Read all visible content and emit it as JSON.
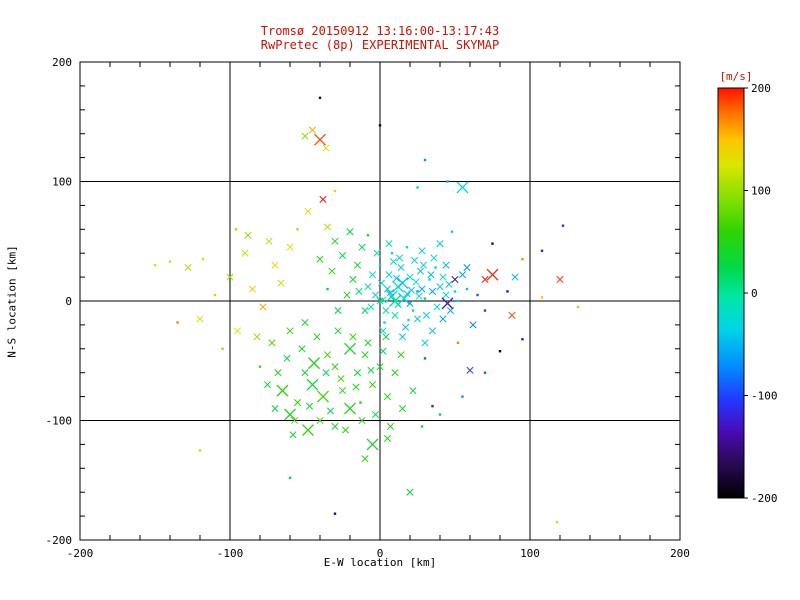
{
  "colors": {
    "background": "#ffffff",
    "title_text": "#cc1100",
    "axis_text": "#000000",
    "frame": "#000000"
  },
  "chart_data": {
    "type": "scatter",
    "title": "Tromsø 20150912 13:16:00-13:17:43",
    "subtitle": "RwPretec (8p) EXPERIMENTAL SKYMAP",
    "xlabel": "E-W location [km]",
    "ylabel": "N-S location [km]",
    "xlim": [
      -200,
      200
    ],
    "ylim": [
      -200,
      200
    ],
    "xticks": [
      -200,
      -100,
      0,
      100,
      200
    ],
    "yticks": [
      -200,
      -100,
      0,
      100,
      200
    ],
    "grid": true,
    "legend_position": "none",
    "colorbar": {
      "label": "[m/s]",
      "ticks": [
        200,
        100,
        0,
        -100,
        -200
      ],
      "min": -200,
      "max": 200
    },
    "colormap": [
      [
        -200,
        "#000000"
      ],
      [
        -165,
        "#2b0a57"
      ],
      [
        -135,
        "#4b0bb5"
      ],
      [
        -105,
        "#2337ff"
      ],
      [
        -70,
        "#008fff"
      ],
      [
        -35,
        "#00d4e6"
      ],
      [
        -5,
        "#00e6a8"
      ],
      [
        25,
        "#00d948"
      ],
      [
        60,
        "#2fd400"
      ],
      [
        95,
        "#8ce000"
      ],
      [
        125,
        "#d9e600"
      ],
      [
        150,
        "#ffc400"
      ],
      [
        175,
        "#ff7300"
      ],
      [
        200,
        "#ff1200"
      ]
    ],
    "points": [
      [
        2,
        1,
        -20,
        2
      ],
      [
        8,
        4,
        -30,
        3
      ],
      [
        12,
        -3,
        -15,
        2
      ],
      [
        5,
        10,
        -42,
        2
      ],
      [
        18,
        6,
        -25,
        2
      ],
      [
        22,
        -8,
        -12,
        1
      ],
      [
        -3,
        5,
        -35,
        2
      ],
      [
        15,
        15,
        -45,
        3
      ],
      [
        28,
        10,
        -55,
        2
      ],
      [
        10,
        -12,
        -20,
        2
      ],
      [
        6,
        22,
        -30,
        2
      ],
      [
        20,
        20,
        -15,
        2
      ],
      [
        30,
        2,
        -40,
        1
      ],
      [
        35,
        8,
        -60,
        2
      ],
      [
        14,
        28,
        -35,
        2
      ],
      [
        -6,
        -5,
        -10,
        2
      ],
      [
        25,
        -15,
        -30,
        2
      ],
      [
        3,
        -18,
        -25,
        1
      ],
      [
        9,
        33,
        -20,
        2
      ],
      [
        17,
        -22,
        -45,
        2
      ],
      [
        27,
        25,
        -50,
        2
      ],
      [
        33,
        18,
        -35,
        1
      ],
      [
        40,
        12,
        -38,
        2
      ],
      [
        44,
        5,
        -30,
        2
      ],
      [
        38,
        -5,
        -25,
        2
      ],
      [
        12,
        12,
        -8,
        3
      ],
      [
        7,
        7,
        -52,
        2
      ],
      [
        1,
        15,
        -28,
        2
      ],
      [
        -8,
        12,
        -18,
        2
      ],
      [
        16,
        2,
        -33,
        3
      ],
      [
        21,
        9,
        -47,
        2
      ],
      [
        24,
        16,
        -22,
        2
      ],
      [
        31,
        -12,
        -38,
        2
      ],
      [
        4,
        -8,
        -15,
        2
      ],
      [
        11,
        19,
        -42,
        2
      ],
      [
        19,
        -16,
        -28,
        1
      ],
      [
        26,
        4,
        -12,
        2
      ],
      [
        34,
        22,
        -48,
        2
      ],
      [
        29,
        30,
        -26,
        2
      ],
      [
        13,
        36,
        -31,
        2
      ],
      [
        8,
        40,
        -19,
        1
      ],
      [
        0,
        30,
        -37,
        1
      ],
      [
        -5,
        22,
        -23,
        2
      ],
      [
        23,
        34,
        -41,
        2
      ],
      [
        37,
        28,
        -29,
        1
      ],
      [
        42,
        20,
        -16,
        2
      ],
      [
        46,
        14,
        -44,
        2
      ],
      [
        50,
        8,
        -34,
        1
      ],
      [
        2,
        -25,
        -21,
        2
      ],
      [
        15,
        -30,
        -39,
        2
      ],
      [
        47,
        -8,
        -55,
        2
      ],
      [
        52,
        0,
        -25,
        1
      ],
      [
        44,
        30,
        -52,
        2
      ],
      [
        36,
        36,
        -20,
        2
      ],
      [
        28,
        42,
        -34,
        2
      ],
      [
        18,
        45,
        -12,
        1
      ],
      [
        6,
        48,
        -30,
        2
      ],
      [
        -2,
        40,
        -8,
        2
      ],
      [
        55,
        22,
        -60,
        2
      ],
      [
        58,
        10,
        -42,
        1
      ],
      [
        10,
        0,
        5,
        3
      ],
      [
        0,
        0,
        15,
        2
      ],
      [
        -10,
        -8,
        22,
        2
      ],
      [
        -14,
        8,
        10,
        2
      ],
      [
        20,
        -2,
        -70,
        2
      ],
      [
        25,
        8,
        -65,
        1
      ],
      [
        35,
        -25,
        -45,
        2
      ],
      [
        42,
        -15,
        -58,
        2
      ],
      [
        30,
        -35,
        -30,
        2
      ],
      [
        -18,
        18,
        35,
        2
      ],
      [
        -22,
        5,
        48,
        2
      ],
      [
        -28,
        -8,
        30,
        2
      ],
      [
        -15,
        30,
        42,
        2
      ],
      [
        -25,
        38,
        28,
        2
      ],
      [
        -32,
        25,
        55,
        2
      ],
      [
        -12,
        45,
        20,
        2
      ],
      [
        -35,
        10,
        38,
        1
      ],
      [
        -30,
        50,
        46,
        2
      ],
      [
        -20,
        58,
        24,
        2
      ],
      [
        -8,
        55,
        40,
        1
      ],
      [
        -40,
        35,
        52,
        2
      ],
      [
        -20,
        -40,
        40,
        3
      ],
      [
        -30,
        -55,
        55,
        2
      ],
      [
        -45,
        -70,
        35,
        3
      ],
      [
        -55,
        -85,
        60,
        2
      ],
      [
        -60,
        -95,
        45,
        3
      ],
      [
        -40,
        -100,
        70,
        2
      ],
      [
        -25,
        -75,
        50,
        2
      ],
      [
        -15,
        -60,
        30,
        2
      ],
      [
        -35,
        -45,
        65,
        2
      ],
      [
        -50,
        -60,
        40,
        2
      ],
      [
        -65,
        -75,
        55,
        3
      ],
      [
        -70,
        -90,
        30,
        2
      ],
      [
        -10,
        -45,
        45,
        2
      ],
      [
        -5,
        -70,
        60,
        2
      ],
      [
        -20,
        -90,
        50,
        3
      ],
      [
        -30,
        -105,
        40,
        2
      ],
      [
        -48,
        -108,
        58,
        3
      ],
      [
        -58,
        -112,
        35,
        2
      ],
      [
        0,
        -55,
        42,
        2
      ],
      [
        5,
        -80,
        52,
        2
      ],
      [
        -12,
        -100,
        62,
        2
      ],
      [
        -68,
        -60,
        48,
        2
      ],
      [
        -75,
        -70,
        38,
        2
      ],
      [
        -80,
        -55,
        68,
        1
      ],
      [
        -42,
        -30,
        58,
        2
      ],
      [
        -52,
        -40,
        44,
        2
      ],
      [
        -62,
        -48,
        30,
        2
      ],
      [
        -72,
        -35,
        72,
        2
      ],
      [
        -28,
        -25,
        36,
        2
      ],
      [
        -18,
        -30,
        64,
        2
      ],
      [
        -8,
        -35,
        46,
        2
      ],
      [
        2,
        -42,
        28,
        2
      ],
      [
        10,
        -60,
        54,
        2
      ],
      [
        -38,
        -80,
        66,
        3
      ],
      [
        -47,
        -88,
        34,
        2
      ],
      [
        -57,
        -100,
        76,
        2
      ],
      [
        -33,
        -92,
        24,
        2
      ],
      [
        -23,
        -108,
        56,
        2
      ],
      [
        -13,
        -85,
        44,
        1
      ],
      [
        -3,
        -95,
        36,
        2
      ],
      [
        7,
        -105,
        50,
        2
      ],
      [
        -60,
        -25,
        60,
        2
      ],
      [
        -50,
        -18,
        40,
        2
      ],
      [
        -36,
        -60,
        20,
        2
      ],
      [
        -26,
        -65,
        70,
        2
      ],
      [
        -16,
        -72,
        48,
        2
      ],
      [
        -6,
        -58,
        32,
        2
      ],
      [
        4,
        -30,
        26,
        2
      ],
      [
        14,
        -45,
        58,
        2
      ],
      [
        -44,
        -52,
        50,
        3
      ],
      [
        -150,
        30,
        120,
        1
      ],
      [
        -140,
        33,
        140,
        1
      ],
      [
        -128,
        28,
        110,
        2
      ],
      [
        -120,
        -15,
        130,
        2
      ],
      [
        -110,
        5,
        150,
        1
      ],
      [
        -100,
        20,
        100,
        2
      ],
      [
        -95,
        -25,
        125,
        2
      ],
      [
        -90,
        40,
        115,
        2
      ],
      [
        -85,
        10,
        145,
        2
      ],
      [
        -78,
        -5,
        160,
        2
      ],
      [
        -105,
        -40,
        105,
        1
      ],
      [
        -88,
        55,
        95,
        2
      ],
      [
        -70,
        30,
        135,
        2
      ],
      [
        -66,
        15,
        118,
        2
      ],
      [
        -60,
        45,
        128,
        2
      ],
      [
        -55,
        60,
        108,
        1
      ],
      [
        -82,
        -30,
        98,
        2
      ],
      [
        -74,
        50,
        112,
        2
      ],
      [
        -118,
        35,
        122,
        1
      ],
      [
        -96,
        60,
        102,
        1
      ],
      [
        -35,
        62,
        110,
        2
      ],
      [
        -48,
        75,
        130,
        2
      ],
      [
        -40,
        135,
        185,
        3
      ],
      [
        -45,
        143,
        160,
        2
      ],
      [
        -36,
        128,
        120,
        2
      ],
      [
        -50,
        138,
        95,
        2
      ],
      [
        -38,
        85,
        200,
        2
      ],
      [
        -30,
        92,
        140,
        1
      ],
      [
        75,
        22,
        195,
        3
      ],
      [
        70,
        18,
        200,
        2
      ],
      [
        120,
        18,
        190,
        2
      ],
      [
        88,
        -12,
        185,
        2
      ],
      [
        108,
        3,
        150,
        1
      ],
      [
        52,
        -35,
        170,
        1
      ],
      [
        132,
        -5,
        155,
        1
      ],
      [
        95,
        35,
        165,
        1
      ],
      [
        -135,
        -18,
        170,
        1
      ],
      [
        -40,
        170,
        -180,
        1
      ],
      [
        55,
        95,
        -35,
        3
      ],
      [
        75,
        48,
        -170,
        1
      ],
      [
        108,
        42,
        -120,
        1
      ],
      [
        122,
        63,
        -110,
        1
      ],
      [
        95,
        -32,
        -130,
        1
      ],
      [
        80,
        -42,
        -190,
        1
      ],
      [
        60,
        -58,
        -100,
        2
      ],
      [
        35,
        -88,
        -115,
        1
      ],
      [
        50,
        18,
        -150,
        2
      ],
      [
        65,
        5,
        -90,
        1
      ],
      [
        45,
        -2,
        -125,
        3
      ],
      [
        58,
        28,
        -65,
        2
      ],
      [
        85,
        8,
        -140,
        1
      ],
      [
        30,
        -48,
        -85,
        1
      ],
      [
        62,
        -20,
        -75,
        2
      ],
      [
        70,
        -8,
        -105,
        1
      ],
      [
        90,
        20,
        -55,
        2
      ],
      [
        40,
        48,
        -45,
        2
      ],
      [
        48,
        58,
        -30,
        1
      ],
      [
        0,
        147,
        -185,
        1
      ],
      [
        30,
        118,
        -70,
        1
      ],
      [
        45,
        100,
        -55,
        1
      ],
      [
        25,
        95,
        -40,
        1
      ],
      [
        -5,
        -120,
        40,
        3
      ],
      [
        -10,
        -132,
        55,
        2
      ],
      [
        20,
        -160,
        30,
        2
      ],
      [
        -60,
        -148,
        45,
        1
      ],
      [
        -120,
        -125,
        115,
        1
      ],
      [
        118,
        -185,
        120,
        1
      ],
      [
        -30,
        -178,
        -160,
        1
      ],
      [
        5,
        -115,
        48,
        2
      ],
      [
        28,
        -105,
        36,
        1
      ],
      [
        40,
        -95,
        -50,
        1
      ],
      [
        55,
        -80,
        -65,
        1
      ],
      [
        70,
        -60,
        -90,
        1
      ],
      [
        15,
        -90,
        44,
        2
      ],
      [
        22,
        -75,
        30,
        2
      ]
    ]
  }
}
